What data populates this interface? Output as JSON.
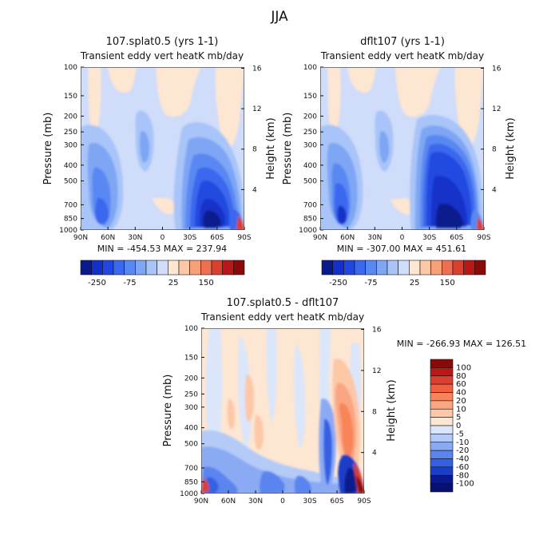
{
  "figure": {
    "season_title": "JJA",
    "shared_labels": {
      "pressure_axis": "Pressure (mb)",
      "height_axis": "Height (km)",
      "field_subtitle": "Transient eddy vert heatK mb/day"
    }
  },
  "chart_data": [
    {
      "type": "heatmap",
      "title": "107.splat0.5 (yrs 1-1)",
      "subtitle": "Transient eddy vert heatK mb/day",
      "xlabel": "",
      "ylabel": "Pressure (mb)",
      "y2label": "Height (km)",
      "x_ticks": [
        "90N",
        "60N",
        "30N",
        "0",
        "30S",
        "60S",
        "90S"
      ],
      "y_ticks": [
        "100",
        "150",
        "200",
        "250",
        "300",
        "400",
        "500",
        "700",
        "850",
        "1000"
      ],
      "y2_ticks": [
        "16",
        "12",
        "8",
        "4"
      ],
      "y_scale": "log",
      "stats": "MIN = -454.53   MAX = 237.94",
      "colorbar_ticks": [
        "-250",
        "-75",
        "25",
        "150"
      ],
      "colorbar_colors": [
        "#0a1a8c",
        "#1530c8",
        "#2048e0",
        "#3a68ee",
        "#5a88f2",
        "#7ea6f5",
        "#a8c4f8",
        "#cfdcfa",
        "#fde6d2",
        "#fdc8a8",
        "#f8a07a",
        "#ee7050",
        "#d94030",
        "#b81818",
        "#8a0a0a"
      ]
    },
    {
      "type": "heatmap",
      "title": "dflt107 (yrs 1-1)",
      "subtitle": "Transient eddy vert heatK mb/day",
      "xlabel": "",
      "ylabel": "Pressure (mb)",
      "y2label": "Height (km)",
      "x_ticks": [
        "90N",
        "60N",
        "30N",
        "0",
        "30S",
        "60S",
        "90S"
      ],
      "y_ticks": [
        "100",
        "150",
        "200",
        "250",
        "300",
        "400",
        "500",
        "700",
        "850",
        "1000"
      ],
      "y2_ticks": [
        "16",
        "12",
        "8",
        "4"
      ],
      "y_scale": "log",
      "stats": "MIN = -307.00   MAX = 451.61",
      "colorbar_ticks": [
        "-250",
        "-75",
        "25",
        "150"
      ],
      "colorbar_colors": [
        "#0a1a8c",
        "#1530c8",
        "#2048e0",
        "#3a68ee",
        "#5a88f2",
        "#7ea6f5",
        "#a8c4f8",
        "#cfdcfa",
        "#fde6d2",
        "#fdc8a8",
        "#f8a07a",
        "#ee7050",
        "#d94030",
        "#b81818",
        "#8a0a0a"
      ]
    },
    {
      "type": "heatmap",
      "title": "107.splat0.5 - dflt107",
      "subtitle": "Transient eddy vert heatK mb/day",
      "xlabel": "",
      "ylabel": "Pressure (mb)",
      "y2label": "Height (km)",
      "x_ticks": [
        "90N",
        "60N",
        "30N",
        "0",
        "30S",
        "60S",
        "90S"
      ],
      "y_ticks": [
        "100",
        "150",
        "200",
        "250",
        "300",
        "400",
        "500",
        "700",
        "850",
        "1000"
      ],
      "y2_ticks": [
        "16",
        "12",
        "8",
        "4"
      ],
      "y_scale": "log",
      "stats": "MIN = -266.93   MAX = 126.51",
      "legend_levels": [
        "100",
        "80",
        "60",
        "40",
        "20",
        "10",
        "5",
        "0",
        "-5",
        "-10",
        "-20",
        "-40",
        "-60",
        "-80",
        "-100"
      ],
      "legend_colors": [
        "#8a0a0a",
        "#b81818",
        "#d94030",
        "#ee6040",
        "#f8845a",
        "#fba682",
        "#fdc8a8",
        "#fde6d2",
        "#dbe6fb",
        "#b4cbf8",
        "#8aaaf4",
        "#5a84ee",
        "#3460e2",
        "#1a3ec8",
        "#0a1a8c",
        "#081070"
      ]
    }
  ]
}
